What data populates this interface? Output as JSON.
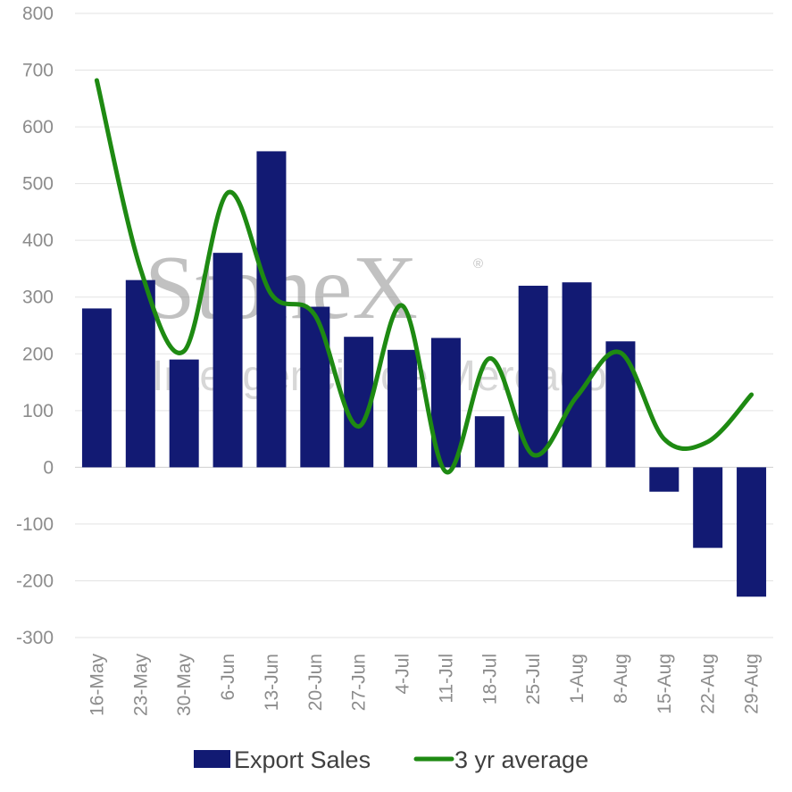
{
  "watermark": {
    "brand": "StoneX",
    "registered": "®",
    "tagline": "Inteligência de Mercado"
  },
  "colors": {
    "bars": "#121a73",
    "line": "#1e8a12",
    "grid": "#e3e3e3",
    "text": "#8c8c8c"
  },
  "chart_data": {
    "type": "bar",
    "title": "",
    "xlabel": "",
    "ylabel": "",
    "categories": [
      "16-May",
      "23-May",
      "30-May",
      "6-Jun",
      "13-Jun",
      "20-Jun",
      "27-Jun",
      "4-Jul",
      "11-Jul",
      "18-Jul",
      "25-Jul",
      "1-Aug",
      "8-Aug",
      "15-Aug",
      "22-Aug",
      "29-Aug"
    ],
    "ylim": [
      -300,
      800
    ],
    "yticks": [
      "800",
      "700",
      "600",
      "500",
      "400",
      "300",
      "200",
      "100",
      "0",
      "-100",
      "-200",
      "-300"
    ],
    "grid": true,
    "legend_position": "bottom",
    "series": [
      {
        "name": "Export Sales",
        "kind": "bar",
        "values": [
          280,
          330,
          190,
          378,
          557,
          283,
          230,
          207,
          228,
          90,
          320,
          326,
          222,
          -43,
          -142,
          -228
        ]
      },
      {
        "name": "3 yr average",
        "kind": "line",
        "smooth": true,
        "values": [
          682,
          350,
          205,
          484,
          305,
          268,
          72,
          285,
          -8,
          192,
          22,
          125,
          202,
          50,
          45,
          128
        ]
      }
    ]
  }
}
